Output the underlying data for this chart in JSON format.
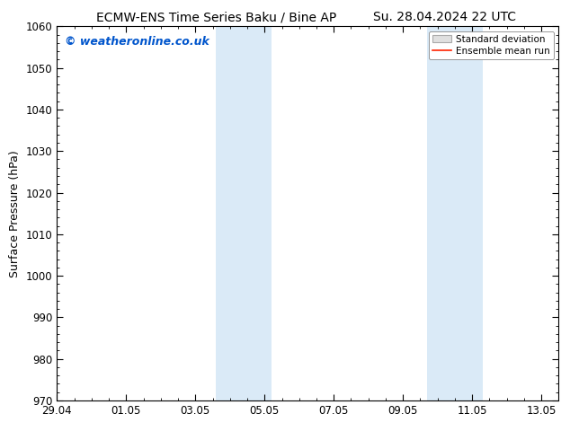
{
  "title_left": "ECMW-ENS Time Series Baku / Bine AP",
  "title_right": "Su. 28.04.2024 22 UTC",
  "ylabel": "Surface Pressure (hPa)",
  "watermark": "© weatheronline.co.uk",
  "watermark_color": "#0055cc",
  "ylim": [
    970,
    1060
  ],
  "yticks": [
    970,
    980,
    990,
    1000,
    1010,
    1020,
    1030,
    1040,
    1050,
    1060
  ],
  "xlim_start": 0.0,
  "xlim_end": 14.5,
  "xtick_labels": [
    "29.04",
    "01.05",
    "03.05",
    "05.05",
    "07.05",
    "09.05",
    "11.05",
    "13.05"
  ],
  "xtick_positions": [
    0.0,
    2.0,
    4.0,
    6.0,
    8.0,
    10.0,
    12.0,
    14.0
  ],
  "shaded_bands": [
    {
      "x_start": 4.6,
      "x_end": 6.2
    },
    {
      "x_start": 10.7,
      "x_end": 12.3
    }
  ],
  "shade_color": "#daeaf7",
  "legend_std_color": "#cccccc",
  "legend_mean_color": "#ff2200",
  "background_color": "#ffffff",
  "title_fontsize": 10,
  "axis_fontsize": 9,
  "tick_fontsize": 8.5,
  "watermark_fontsize": 9
}
